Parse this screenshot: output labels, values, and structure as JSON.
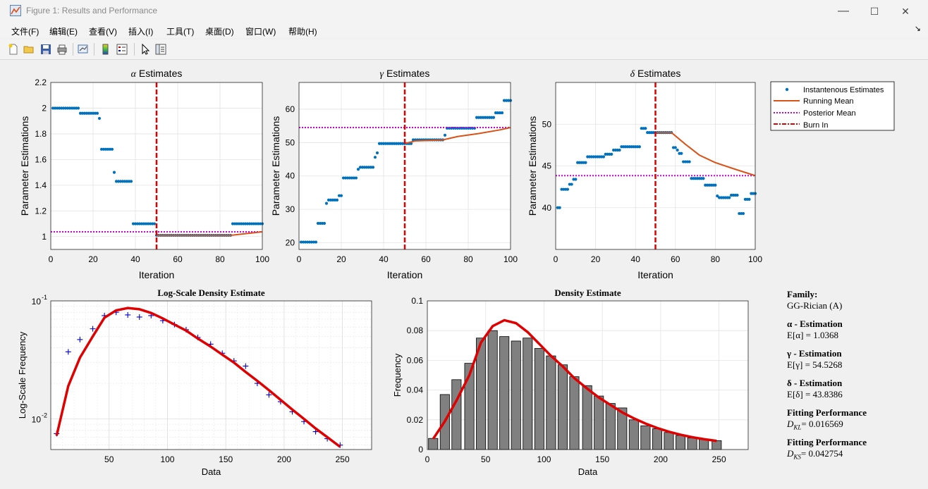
{
  "window": {
    "title": "Figure 1: Results and Performance",
    "minimize": "—",
    "maximize": "☐",
    "close": "✕"
  },
  "menu": [
    "文件(F)",
    "编辑(E)",
    "查看(V)",
    "插入(I)",
    "工具(T)",
    "桌面(D)",
    "窗口(W)",
    "帮助(H)"
  ],
  "toolbar": [
    "new-file-icon",
    "open-folder-icon",
    "save-icon",
    "print-icon",
    "link-figure-icon",
    "colorbar-icon",
    "legend-icon",
    "pointer-icon",
    "property-editor-icon"
  ],
  "colors": {
    "blue": "#0072bd",
    "orange": "#d95319",
    "magenta": "#cc00cc",
    "red": "#e00000",
    "bar": "#808080",
    "plus": "#0000cc"
  },
  "legend": {
    "items": [
      "Instantenous Estimates",
      "Running Mean",
      "Posterior Mean",
      "Burn In"
    ]
  },
  "info": {
    "family_label": "Family:",
    "family_value": "GG-Rician (A)",
    "alpha_label": "α - Estimation",
    "alpha_value": "E[α] = 1.0368",
    "gamma_label": "γ - Estimation",
    "gamma_value": "E[γ] = 54.5268",
    "delta_label": "δ - Estimation",
    "delta_value": "E[δ] = 43.8386",
    "kl_label": "Fitting Performance",
    "kl_sym": "D",
    "kl_sub": "KL",
    "kl_value": "= 0.016569",
    "ks_label": "Fitting Performance",
    "ks_sym": "D",
    "ks_sub": "KS",
    "ks_value": "= 0.042754"
  },
  "chart_data": [
    {
      "type": "scatter",
      "title_sym": "α",
      "title_rest": " Estimates",
      "xlabel": "Iteration",
      "ylabel": "Parameter Estimations",
      "xlim": [
        0,
        100
      ],
      "ylim": [
        0.9,
        2.2
      ],
      "xticks": [
        0,
        20,
        40,
        60,
        80,
        100
      ],
      "yticks": [
        1,
        1.2,
        1.4,
        1.6,
        1.8,
        2,
        2.2
      ],
      "burn_in": 50,
      "posterior_mean": 1.0368,
      "steps": [
        [
          1,
          13,
          2.0
        ],
        [
          14,
          22,
          1.96
        ],
        [
          23,
          23,
          1.92
        ],
        [
          24,
          29,
          1.68
        ],
        [
          30,
          30,
          1.5
        ],
        [
          31,
          38,
          1.43
        ],
        [
          39,
          49,
          1.1
        ],
        [
          50,
          85,
          1.01
        ],
        [
          86,
          100,
          1.1
        ]
      ],
      "running_mean": [
        [
          50,
          1.01
        ],
        [
          85,
          1.01
        ],
        [
          100,
          1.037
        ]
      ]
    },
    {
      "type": "scatter",
      "title_sym": "γ",
      "title_rest": " Estimates",
      "xlabel": "Iteration",
      "ylabel": "Parameter Estimations",
      "xlim": [
        0,
        100
      ],
      "ylim": [
        18,
        68
      ],
      "xticks": [
        0,
        20,
        40,
        60,
        80,
        100
      ],
      "yticks": [
        20,
        30,
        40,
        50,
        60
      ],
      "burn_in": 50,
      "posterior_mean": 54.5,
      "steps": [
        [
          1,
          8,
          20.2
        ],
        [
          9,
          12,
          25.8
        ],
        [
          13,
          13,
          31.8
        ],
        [
          14,
          18,
          32.8
        ],
        [
          19,
          20,
          34.1
        ],
        [
          21,
          27,
          39.4
        ],
        [
          28,
          28,
          42.0
        ],
        [
          29,
          35,
          42.6
        ],
        [
          36,
          36,
          45.6
        ],
        [
          37,
          37,
          46.9
        ],
        [
          38,
          53,
          49.7
        ],
        [
          54,
          68,
          50.8
        ],
        [
          69,
          69,
          52.2
        ],
        [
          70,
          83,
          54.3
        ],
        [
          84,
          92,
          57.5
        ],
        [
          93,
          96,
          58.9
        ],
        [
          97,
          100,
          62.6
        ]
      ],
      "running_mean": [
        [
          50,
          49.7
        ],
        [
          55,
          50.5
        ],
        [
          68,
          50.8
        ],
        [
          75,
          51.8
        ],
        [
          85,
          52.7
        ],
        [
          95,
          53.8
        ],
        [
          100,
          54.5
        ]
      ]
    },
    {
      "type": "scatter",
      "title_sym": "δ",
      "title_rest": " Estimates",
      "xlabel": "Iteration",
      "ylabel": "Parameter Estimations",
      "xlim": [
        0,
        100
      ],
      "ylim": [
        35,
        55
      ],
      "xticks": [
        0,
        20,
        40,
        60,
        80,
        100
      ],
      "yticks": [
        40,
        45,
        50
      ],
      "burn_in": 50,
      "posterior_mean": 43.84,
      "steps": [
        [
          1,
          2,
          40.0
        ],
        [
          3,
          6,
          42.2
        ],
        [
          7,
          8,
          42.8
        ],
        [
          9,
          10,
          43.4
        ],
        [
          11,
          15,
          45.4
        ],
        [
          16,
          24,
          46.1
        ],
        [
          25,
          28,
          46.4
        ],
        [
          29,
          32,
          46.9
        ],
        [
          33,
          42,
          47.3
        ],
        [
          43,
          45,
          49.5
        ],
        [
          46,
          58,
          49.0
        ],
        [
          59,
          60,
          47.2
        ],
        [
          61,
          61,
          46.9
        ],
        [
          62,
          63,
          46.5
        ],
        [
          64,
          67,
          45.5
        ],
        [
          68,
          74,
          43.5
        ],
        [
          75,
          80,
          42.7
        ],
        [
          81,
          81,
          41.4
        ],
        [
          82,
          87,
          41.2
        ],
        [
          88,
          91,
          41.5
        ],
        [
          92,
          94,
          39.3
        ],
        [
          95,
          97,
          41.0
        ],
        [
          98,
          100,
          41.7
        ]
      ],
      "running_mean": [
        [
          50,
          49.0
        ],
        [
          58,
          49.0
        ],
        [
          65,
          47.6
        ],
        [
          72,
          46.3
        ],
        [
          80,
          45.4
        ],
        [
          90,
          44.6
        ],
        [
          100,
          43.84
        ]
      ]
    },
    {
      "type": "line",
      "title": "Log-Scale Density Estimate",
      "scale": "log",
      "xlabel": "Data",
      "ylabel": "Log-Scale Frequency",
      "xlim": [
        0,
        275
      ],
      "ylim": [
        0.0055,
        0.1
      ],
      "xticks": [
        50,
        100,
        150,
        200,
        250
      ],
      "ytick_labels": [
        {
          "v": 0.1,
          "base": "10",
          "exp": "-1"
        },
        {
          "v": 0.01,
          "base": "10",
          "exp": "-2"
        }
      ],
      "points_x": [
        5,
        15,
        25,
        36,
        46,
        56,
        66,
        76,
        86,
        96,
        106,
        116,
        126,
        137,
        147,
        157,
        167,
        177,
        187,
        197,
        207,
        217,
        227,
        237,
        248
      ],
      "points_y": [
        0.0075,
        0.037,
        0.047,
        0.058,
        0.075,
        0.08,
        0.076,
        0.073,
        0.075,
        0.068,
        0.063,
        0.057,
        0.049,
        0.043,
        0.036,
        0.031,
        0.028,
        0.02,
        0.016,
        0.014,
        0.0115,
        0.0095,
        0.0078,
        0.0068,
        0.006
      ],
      "curve": [
        [
          5,
          0.0072
        ],
        [
          15,
          0.019
        ],
        [
          25,
          0.033
        ],
        [
          36,
          0.05
        ],
        [
          46,
          0.072
        ],
        [
          56,
          0.083
        ],
        [
          66,
          0.087
        ],
        [
          76,
          0.085
        ],
        [
          86,
          0.079
        ],
        [
          96,
          0.071
        ],
        [
          106,
          0.063
        ],
        [
          116,
          0.056
        ],
        [
          126,
          0.048
        ],
        [
          137,
          0.041
        ],
        [
          147,
          0.035
        ],
        [
          157,
          0.03
        ],
        [
          167,
          0.025
        ],
        [
          177,
          0.021
        ],
        [
          187,
          0.0175
        ],
        [
          197,
          0.0145
        ],
        [
          207,
          0.012
        ],
        [
          217,
          0.01
        ],
        [
          227,
          0.0083
        ],
        [
          237,
          0.007
        ],
        [
          248,
          0.0058
        ]
      ]
    },
    {
      "type": "bar",
      "title": "Density Estimate",
      "xlabel": "Data",
      "ylabel": "Frequency",
      "xlim": [
        0,
        275
      ],
      "ylim": [
        0,
        0.1
      ],
      "xticks": [
        0,
        50,
        100,
        150,
        200,
        250
      ],
      "yticks": [
        0,
        0.02,
        0.04,
        0.06,
        0.08,
        0.1
      ],
      "bar_x": [
        5,
        15,
        25,
        36,
        46,
        56,
        66,
        76,
        86,
        96,
        106,
        116,
        126,
        137,
        147,
        157,
        167,
        177,
        187,
        197,
        207,
        217,
        227,
        237,
        248
      ],
      "bar_values": [
        0.0075,
        0.037,
        0.047,
        0.058,
        0.075,
        0.08,
        0.076,
        0.073,
        0.075,
        0.068,
        0.063,
        0.057,
        0.049,
        0.043,
        0.036,
        0.031,
        0.028,
        0.02,
        0.016,
        0.014,
        0.0115,
        0.0095,
        0.0078,
        0.0068,
        0.006
      ],
      "curve": [
        [
          5,
          0.0072
        ],
        [
          15,
          0.019
        ],
        [
          25,
          0.033
        ],
        [
          36,
          0.05
        ],
        [
          46,
          0.072
        ],
        [
          56,
          0.083
        ],
        [
          66,
          0.087
        ],
        [
          76,
          0.085
        ],
        [
          86,
          0.079
        ],
        [
          96,
          0.071
        ],
        [
          106,
          0.063
        ],
        [
          116,
          0.056
        ],
        [
          126,
          0.048
        ],
        [
          137,
          0.041
        ],
        [
          147,
          0.035
        ],
        [
          157,
          0.03
        ],
        [
          167,
          0.025
        ],
        [
          177,
          0.021
        ],
        [
          187,
          0.0175
        ],
        [
          197,
          0.0145
        ],
        [
          207,
          0.012
        ],
        [
          217,
          0.01
        ],
        [
          227,
          0.0083
        ],
        [
          237,
          0.007
        ],
        [
          248,
          0.0058
        ]
      ]
    }
  ]
}
